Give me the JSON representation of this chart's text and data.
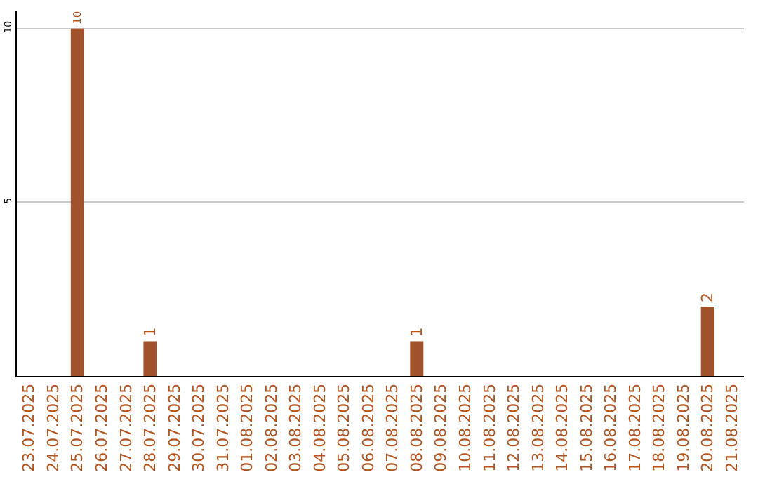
{
  "chart_data": {
    "type": "bar",
    "categories": [
      "23.07.2025",
      "24.07.2025",
      "25.07.2025",
      "26.07.2025",
      "27.07.2025",
      "28.07.2025",
      "29.07.2025",
      "30.07.2025",
      "31.07.2025",
      "01.08.2025",
      "02.08.2025",
      "03.08.2025",
      "04.08.2025",
      "05.08.2025",
      "06.08.2025",
      "07.08.2025",
      "08.08.2025",
      "09.08.2025",
      "10.08.2025",
      "11.08.2025",
      "12.08.2025",
      "13.08.2025",
      "14.08.2025",
      "15.08.2025",
      "16.08.2025",
      "17.08.2025",
      "18.08.2025",
      "19.08.2025",
      "20.08.2025",
      "21.08.2025"
    ],
    "values": [
      0,
      0,
      10,
      0,
      0,
      1,
      0,
      0,
      0,
      0,
      0,
      0,
      0,
      0,
      0,
      0,
      1,
      0,
      0,
      0,
      0,
      0,
      0,
      0,
      0,
      0,
      0,
      0,
      2,
      0
    ],
    "value_labels": [
      null,
      null,
      "10",
      null,
      null,
      "1",
      null,
      null,
      null,
      null,
      null,
      null,
      null,
      null,
      null,
      null,
      "1",
      null,
      null,
      null,
      null,
      null,
      null,
      null,
      null,
      null,
      null,
      null,
      "2",
      null
    ],
    "color": "#a0522d",
    "ylim": [
      0,
      10.5
    ],
    "yticks": [
      5,
      10
    ],
    "grid": "y"
  }
}
